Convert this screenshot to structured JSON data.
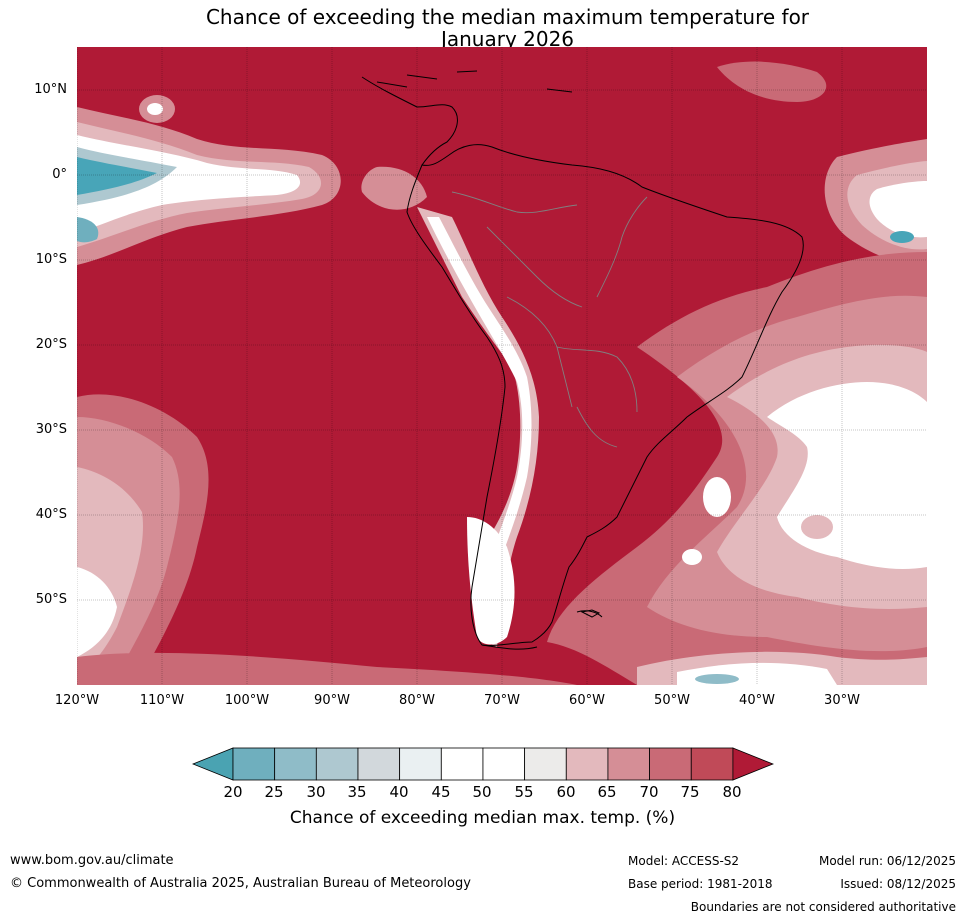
{
  "title": {
    "line1": "Chance of exceeding the median maximum temperature for",
    "line2": "January 2026"
  },
  "map": {
    "region": "South America and surrounding oceans",
    "lat_labels": [
      "10°N",
      "0°",
      "10°S",
      "20°S",
      "30°S",
      "40°S",
      "50°S"
    ],
    "lon_labels": [
      "120°W",
      "110°W",
      "100°W",
      "90°W",
      "80°W",
      "70°W",
      "60°W",
      "50°W",
      "40°W",
      "30°W"
    ],
    "colors": {
      "ocean_high": "#b01a36",
      "band_75_80": "#c04a58",
      "band_70_75": "#c96a76",
      "band_65_70": "#d58e96",
      "band_60_65": "#e3b9bd",
      "band_near_median": "#ffffff",
      "band_low": "#48a5b8",
      "coast": "#000000",
      "borders": "#808080"
    }
  },
  "colorbar": {
    "ticks": [
      "20",
      "25",
      "30",
      "35",
      "40",
      "45",
      "50",
      "55",
      "60",
      "65",
      "70",
      "75",
      "80"
    ],
    "colors": [
      "#4aa3b2",
      "#6fafbe",
      "#8fbcc8",
      "#aec8d0",
      "#d2d8dc",
      "#eaf0f2",
      "#ffffff",
      "#ffffff",
      "#ecebea",
      "#e3b9bd",
      "#d58e96",
      "#c96a76",
      "#c04a58",
      "#b01a36"
    ],
    "label": "Chance of exceeding median max. temp. (%)"
  },
  "footer": {
    "url": "www.bom.gov.au/climate",
    "copyright": "© Commonwealth of Australia 2025, Australian Bureau of Meteorology",
    "model": "Model: ACCESS-S2",
    "base_period": "Base period: 1981-2018",
    "model_run": "Model run: 06/12/2025",
    "issued": "Issued: 08/12/2025",
    "disclaimer": "Boundaries are not considered authoritative"
  }
}
